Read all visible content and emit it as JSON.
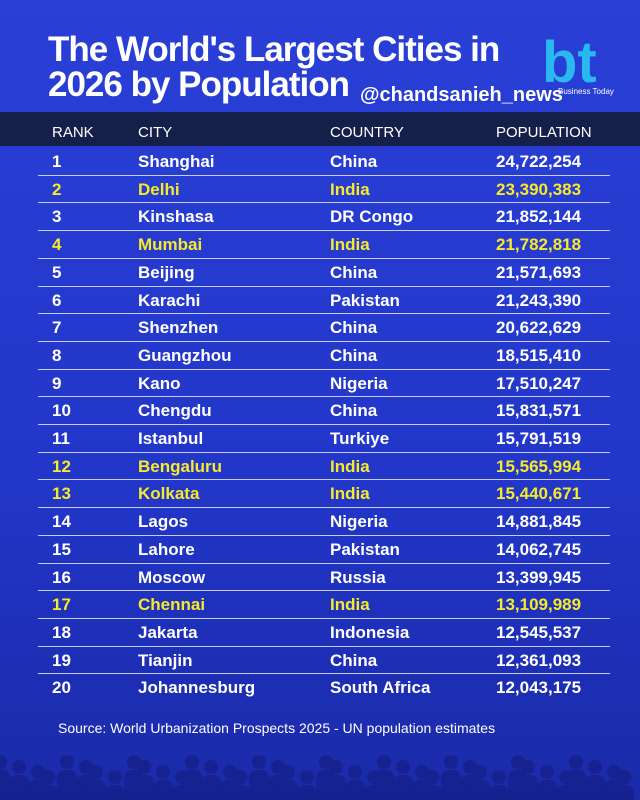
{
  "header": {
    "title_line1": "The World's Largest Cities in",
    "title_line2": "2026 by Population",
    "handle": "@chandsanieh_news",
    "logo": {
      "mark": "bt",
      "caption": "Business Today"
    }
  },
  "table": {
    "columns": [
      "RANK",
      "CITY",
      "COUNTRY",
      "POPULATION"
    ],
    "rows": [
      [
        "1",
        "Shanghai",
        "China",
        "24,722,254"
      ],
      [
        "2",
        "Delhi",
        "India",
        "23,390,383"
      ],
      [
        "3",
        "Kinshasa",
        "DR Congo",
        "21,852,144"
      ],
      [
        "4",
        "Mumbai",
        "India",
        "21,782,818"
      ],
      [
        "5",
        "Beijing",
        "China",
        "21,571,693"
      ],
      [
        "6",
        "Karachi",
        "Pakistan",
        "21,243,390"
      ],
      [
        "7",
        "Shenzhen",
        "China",
        "20,622,629"
      ],
      [
        "8",
        "Guangzhou",
        "China",
        "18,515,410"
      ],
      [
        "9",
        "Kano",
        "Nigeria",
        "17,510,247"
      ],
      [
        "10",
        "Chengdu",
        "China",
        "15,831,571"
      ],
      [
        "11",
        "Istanbul",
        "Turkiye",
        "15,791,519"
      ],
      [
        "12",
        "Bengaluru",
        "India",
        "15,565,994"
      ],
      [
        "13",
        "Kolkata",
        "India",
        "15,440,671"
      ],
      [
        "14",
        "Lagos",
        "Nigeria",
        "14,881,845"
      ],
      [
        "15",
        "Lahore",
        "Pakistan",
        "14,062,745"
      ],
      [
        "16",
        "Moscow",
        "Russia",
        "13,399,945"
      ],
      [
        "17",
        "Chennai",
        "India",
        "13,109,989"
      ],
      [
        "18",
        "Jakarta",
        "Indonesia",
        "12,545,537"
      ],
      [
        "19",
        "Tianjin",
        "China",
        "12,361,093"
      ],
      [
        "20",
        "Johannesburg",
        "South Africa",
        "12,043,175"
      ]
    ]
  },
  "footer": {
    "source": "Source: World Urbanization Prospects 2025 - UN population estimates"
  }
}
